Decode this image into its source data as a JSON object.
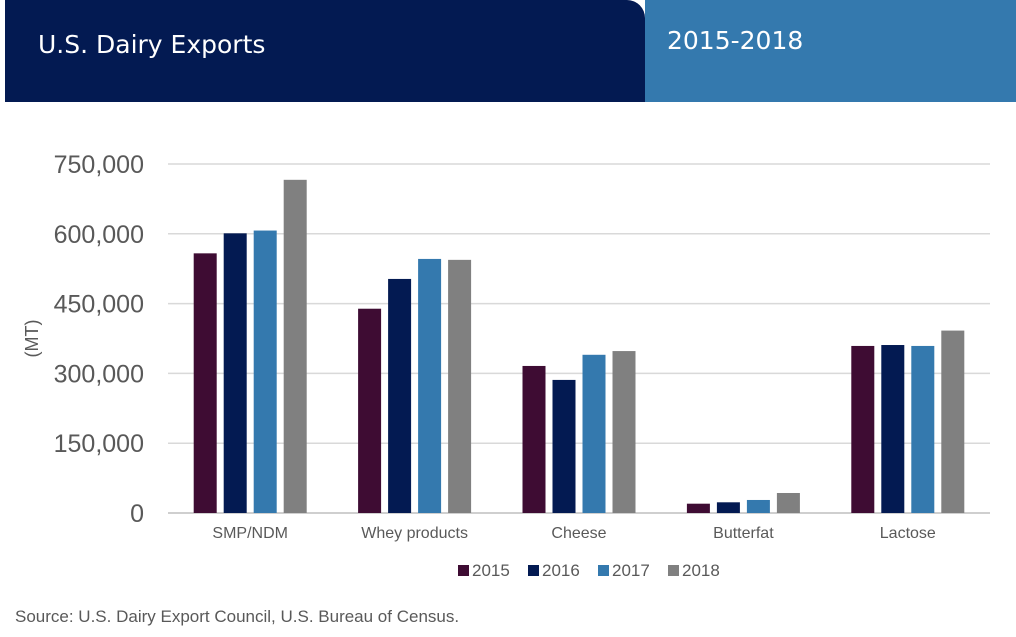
{
  "header": {
    "title": "U.S. Dairy Exports",
    "years": "2015-2018",
    "left_color": "#031a52",
    "right_color": "#3479ae"
  },
  "chart_data": {
    "type": "bar",
    "title": "U.S. Dairy Exports",
    "subtitle": "2015-2018",
    "categories": [
      "SMP/NDM",
      "Whey products",
      "Cheese",
      "Butterfat",
      "Lactose"
    ],
    "series": [
      {
        "name": "2015",
        "color": "#3e0c33",
        "values": [
          558000,
          439000,
          316000,
          20000,
          359000
        ]
      },
      {
        "name": "2016",
        "color": "#031a52",
        "values": [
          601000,
          503000,
          286000,
          23000,
          361000
        ]
      },
      {
        "name": "2017",
        "color": "#3479ae",
        "values": [
          607000,
          546000,
          340000,
          28000,
          359000
        ]
      },
      {
        "name": "2018",
        "color": "#808080",
        "values": [
          716000,
          544000,
          348000,
          43000,
          392000
        ]
      }
    ],
    "ylabel": "(MT)",
    "xlabel": "",
    "ylim": [
      0,
      750000
    ],
    "yticks": [
      0,
      150000,
      300000,
      450000,
      600000,
      750000
    ],
    "ytick_labels": [
      "0",
      "150,000",
      "300,000",
      "450,000",
      "600,000",
      "750,000"
    ],
    "grid": true,
    "legend": "bottom-center"
  },
  "source": "Source: U.S. Dairy Export Council, U.S. Bureau of Census."
}
